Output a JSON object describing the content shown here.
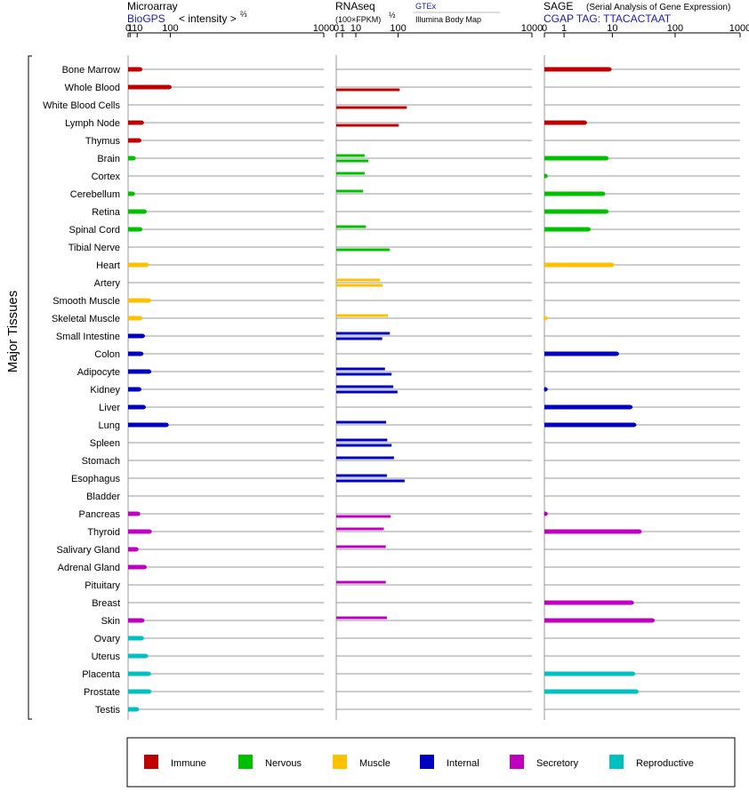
{
  "header": {
    "microarray_title": "Microarray",
    "microarray_source": "BioGPS",
    "microarray_unit": "< intensity >",
    "microarray_exp": "⅔",
    "rnaseq_title": "RNAseq",
    "rnaseq_unit": "(100×FPKM)",
    "rnaseq_exp": "½",
    "rnaseq_source_1": "GTEx",
    "rnaseq_source_2": "Illumina Body Map",
    "sage_title": "SAGE",
    "sage_subtitle": "(Serial Analysis of Gene Expression)",
    "sage_tag": "CGAP TAG: TTACACTAAT"
  },
  "y_axis_label": "Major Tissues",
  "legend": [
    {
      "label": "Immune",
      "color": "#c00000"
    },
    {
      "label": "Nervous",
      "color": "#00c000"
    },
    {
      "label": "Muscle",
      "color": "#ffc000"
    },
    {
      "label": "Internal",
      "color": "#0000c0"
    },
    {
      "label": "Secretory",
      "color": "#c000c0"
    },
    {
      "label": "Reproductive",
      "color": "#00c0c0"
    }
  ],
  "chart_data": [
    {
      "type": "bar",
      "title": "Microarray",
      "scale": "power-2/3",
      "xlim": [
        0,
        1000
      ],
      "ticks": [
        "0",
        "1",
        "10",
        "100",
        "1000"
      ],
      "categories": [
        "Bone Marrow",
        "Whole Blood",
        "White Blood Cells",
        "Lymph Node",
        "Thymus",
        "Brain",
        "Cortex",
        "Cerebellum",
        "Retina",
        "Spinal Cord",
        "Tibial Nerve",
        "Heart",
        "Artery",
        "Smooth Muscle",
        "Skeletal Muscle",
        "Small Intestine",
        "Colon",
        "Adipocyte",
        "Kidney",
        "Liver",
        "Lung",
        "Spleen",
        "Stomach",
        "Esophagus",
        "Bladder",
        "Pancreas",
        "Thyroid",
        "Salivary Gland",
        "Adrenal Gland",
        "Pituitary",
        "Breast",
        "Skin",
        "Ovary",
        "Uterus",
        "Placenta",
        "Prostate",
        "Testis"
      ],
      "groups": [
        "Immune",
        "Immune",
        "Immune",
        "Immune",
        "Immune",
        "Nervous",
        "Nervous",
        "Nervous",
        "Nervous",
        "Nervous",
        "Nervous",
        "Muscle",
        "Muscle",
        "Muscle",
        "Muscle",
        "Internal",
        "Internal",
        "Internal",
        "Internal",
        "Internal",
        "Internal",
        "Internal",
        "Internal",
        "Internal",
        "Internal",
        "Secretory",
        "Secretory",
        "Secretory",
        "Secretory",
        "Secretory",
        "Secretory",
        "Secretory",
        "Reproductive",
        "Reproductive",
        "Reproductive",
        "Reproductive",
        "Reproductive"
      ],
      "values": [
        [
          16
        ],
        [
          98
        ],
        [
          null
        ],
        [
          19
        ],
        [
          14
        ],
        [
          5
        ],
        [
          null
        ],
        [
          4
        ],
        [
          25
        ],
        [
          16
        ],
        [
          null
        ],
        [
          30
        ],
        [
          null
        ],
        [
          35
        ],
        [
          16
        ],
        [
          21
        ],
        [
          18
        ],
        [
          36
        ],
        [
          14
        ],
        [
          23
        ],
        [
          88
        ],
        [
          null
        ],
        [
          null
        ],
        [
          null
        ],
        [
          null
        ],
        [
          12
        ],
        [
          37
        ],
        [
          9
        ],
        [
          25
        ],
        [
          null
        ],
        [
          null
        ],
        [
          20
        ],
        [
          19
        ],
        [
          28
        ],
        [
          35
        ],
        [
          36
        ],
        [
          10
        ]
      ]
    },
    {
      "type": "bar",
      "title": "RNAseq",
      "scale": "power-1/2",
      "xlim": [
        0,
        1000
      ],
      "ticks": [
        "0",
        "1",
        "10",
        "100",
        "1000"
      ],
      "categories": [
        "Bone Marrow",
        "Whole Blood",
        "White Blood Cells",
        "Lymph Node",
        "Thymus",
        "Brain",
        "Cortex",
        "Cerebellum",
        "Retina",
        "Spinal Cord",
        "Tibial Nerve",
        "Heart",
        "Artery",
        "Smooth Muscle",
        "Skeletal Muscle",
        "Small Intestine",
        "Colon",
        "Adipocyte",
        "Kidney",
        "Liver",
        "Lung",
        "Spleen",
        "Stomach",
        "Esophagus",
        "Bladder",
        "Pancreas",
        "Thyroid",
        "Salivary Gland",
        "Adrenal Gland",
        "Pituitary",
        "Breast",
        "Skin",
        "Ovary",
        "Uterus",
        "Placenta",
        "Prostate",
        "Testis"
      ],
      "series_names": [
        "GTEx",
        "Illumina Body Map"
      ],
      "values": [
        [
          null,
          null
        ],
        [
          null,
          105
        ],
        [
          null,
          130
        ],
        [
          null,
          102
        ],
        [
          null,
          null
        ],
        [
          21,
          27
        ],
        [
          21,
          null
        ],
        [
          19,
          null
        ],
        [
          null,
          null
        ],
        [
          23,
          null
        ],
        [
          null,
          75
        ],
        [
          null,
          null
        ],
        [
          50,
          56
        ],
        [
          null,
          null
        ],
        [
          70,
          null
        ],
        [
          75,
          55
        ],
        [
          null,
          null
        ],
        [
          62,
          80
        ],
        [
          85,
          98
        ],
        [
          null,
          null
        ],
        [
          65,
          null
        ],
        [
          68,
          80
        ],
        [
          87,
          null
        ],
        [
          67,
          122
        ],
        [
          null,
          null
        ],
        [
          null,
          77
        ],
        [
          59,
          null
        ],
        [
          64,
          null
        ],
        [
          null,
          null
        ],
        [
          64,
          null
        ],
        [
          null,
          null
        ],
        [
          67,
          null
        ],
        [
          null,
          null
        ],
        [
          null,
          null
        ],
        [
          null,
          null
        ],
        [
          null,
          null
        ],
        [
          null,
          null
        ]
      ]
    },
    {
      "type": "bar",
      "title": "SAGE",
      "scale": "log",
      "xlim": [
        0,
        1000
      ],
      "ticks": [
        "0",
        "1",
        "10",
        "100",
        "1000"
      ],
      "categories": [
        "Bone Marrow",
        "Whole Blood",
        "White Blood Cells",
        "Lymph Node",
        "Thymus",
        "Brain",
        "Cortex",
        "Cerebellum",
        "Retina",
        "Spinal Cord",
        "Tibial Nerve",
        "Heart",
        "Artery",
        "Smooth Muscle",
        "Skeletal Muscle",
        "Small Intestine",
        "Colon",
        "Adipocyte",
        "Kidney",
        "Liver",
        "Lung",
        "Spleen",
        "Stomach",
        "Esophagus",
        "Bladder",
        "Pancreas",
        "Thyroid",
        "Salivary Gland",
        "Adrenal Gland",
        "Pituitary",
        "Breast",
        "Skin",
        "Ovary",
        "Uterus",
        "Placenta",
        "Prostate",
        "Testis"
      ],
      "values": [
        [
          9
        ],
        [
          null
        ],
        [
          null
        ],
        [
          3.2
        ],
        [
          null
        ],
        [
          8
        ],
        [
          0.05
        ],
        [
          7
        ],
        [
          8
        ],
        [
          3.8
        ],
        [
          null
        ],
        [
          10
        ],
        [
          null
        ],
        [
          null
        ],
        [
          0.03
        ],
        [
          null
        ],
        [
          12
        ],
        [
          null
        ],
        [
          0.05
        ],
        [
          20
        ],
        [
          23
        ],
        [
          null
        ],
        [
          null
        ],
        [
          null
        ],
        [
          null
        ],
        [
          0.05
        ],
        [
          28
        ],
        [
          null
        ],
        [
          null
        ],
        [
          null
        ],
        [
          21
        ],
        [
          45
        ],
        [
          null
        ],
        [
          null
        ],
        [
          22
        ],
        [
          25
        ],
        [
          null
        ]
      ]
    }
  ]
}
